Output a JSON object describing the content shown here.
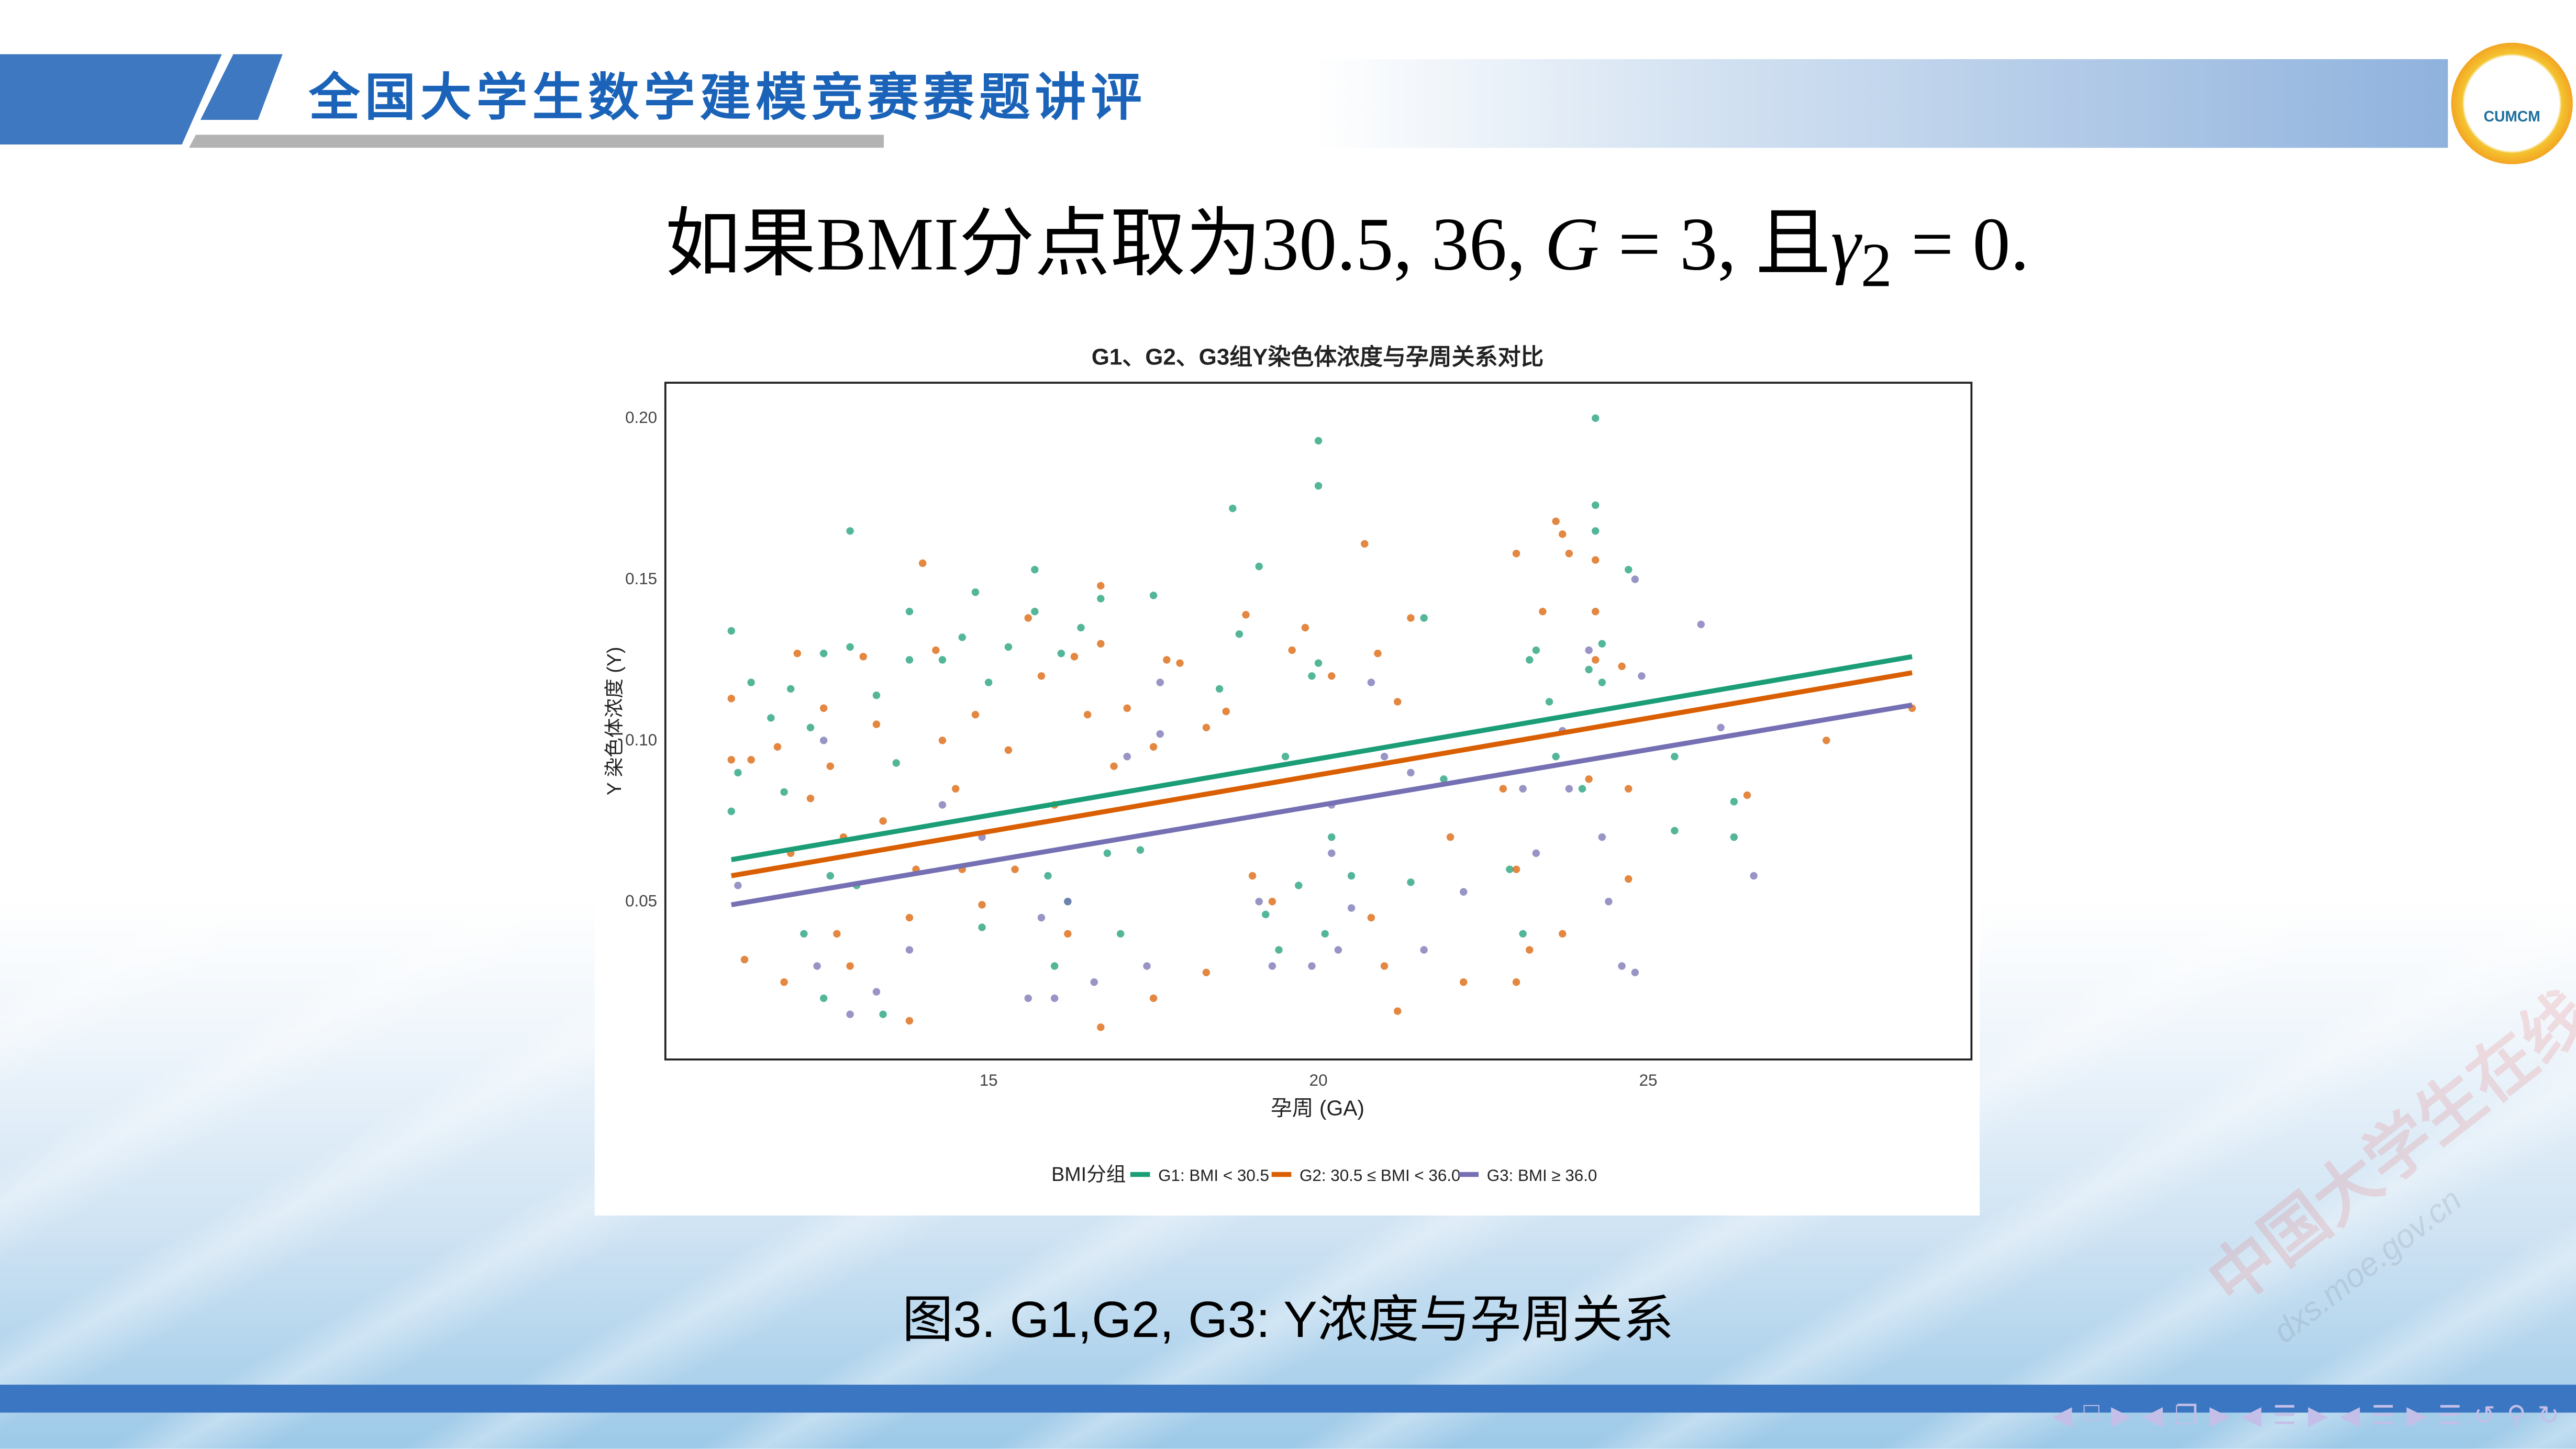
{
  "header": {
    "title": "全国大学生数学建模竞赛赛题讲评",
    "logo_text": "CUMCM"
  },
  "heading": {
    "prefix": "如果BMI分点取为30.5, 36, ",
    "g": "G",
    "g_rest": " = 3, 且",
    "gamma": "γ",
    "sub": "2",
    "end": " = 0."
  },
  "caption": "图3. G1,G2, G3: Y浓度与孕周关系",
  "watermark": {
    "cn": "中国大学生在线",
    "url": "dxs.moe.gov.cn"
  },
  "nav_icons": [
    "arrow-left-icon",
    "frame-icon",
    "arrow-right-icon",
    "arrow-left-icon",
    "subsection-icon",
    "arrow-right-icon",
    "arrow-left-icon",
    "section-icon",
    "arrow-right-icon",
    "arrow-left-icon",
    "outline-icon",
    "arrow-right-icon",
    "toc-icon",
    "back-icon",
    "search-icon",
    "forward-icon"
  ],
  "chart_data": {
    "type": "scatter",
    "title": "G1、G2、G3组Y染色体浓度与孕周关系对比",
    "xlabel": "孕周 (GA)",
    "ylabel": "Y 染色体浓度 (Y)",
    "xlim": [
      10.1,
      29.9
    ],
    "ylim": [
      0.001,
      0.211
    ],
    "xticks": [
      15,
      20,
      25
    ],
    "yticks": [
      0.05,
      0.1,
      0.15,
      0.2
    ],
    "ytick_labels": [
      "0.05",
      "0.10",
      "0.15",
      "0.20"
    ],
    "grid": false,
    "legend": {
      "title": "BMI分组",
      "placement": "bottom"
    },
    "series": [
      {
        "name": "G1: BMI < 30.5",
        "color": "#1b9e77",
        "trend": [
          [
            11.1,
            0.063
          ],
          [
            29,
            0.126
          ]
        ],
        "points": [
          [
            11.1,
            0.134
          ],
          [
            11.1,
            0.078
          ],
          [
            11.2,
            0.09
          ],
          [
            11.4,
            0.118
          ],
          [
            11.7,
            0.107
          ],
          [
            11.9,
            0.084
          ],
          [
            12,
            0.116
          ],
          [
            12.3,
            0.104
          ],
          [
            12.5,
            0.127
          ],
          [
            12.6,
            0.058
          ],
          [
            12.5,
            0.02
          ],
          [
            12.9,
            0.129
          ],
          [
            12.9,
            0.165
          ],
          [
            13.3,
            0.114
          ],
          [
            13.6,
            0.093
          ],
          [
            13.8,
            0.14
          ],
          [
            13.8,
            0.125
          ],
          [
            13.4,
            0.015
          ],
          [
            14.3,
            0.125
          ],
          [
            14.6,
            0.132
          ],
          [
            14.8,
            0.146
          ],
          [
            15,
            0.118
          ],
          [
            15.3,
            0.129
          ],
          [
            15.7,
            0.153
          ],
          [
            15.7,
            0.14
          ],
          [
            16.1,
            0.127
          ],
          [
            16.4,
            0.135
          ],
          [
            16.7,
            0.144
          ],
          [
            17.5,
            0.145
          ],
          [
            16.2,
            0.05
          ],
          [
            16,
            0.03
          ],
          [
            15.9,
            0.058
          ],
          [
            16.8,
            0.065
          ],
          [
            17,
            0.04
          ],
          [
            17.3,
            0.066
          ],
          [
            13,
            0.055
          ],
          [
            12.2,
            0.04
          ],
          [
            14.9,
            0.042
          ],
          [
            18.7,
            0.172
          ],
          [
            19.1,
            0.154
          ],
          [
            18.5,
            0.116
          ],
          [
            18.8,
            0.133
          ],
          [
            20,
            0.193
          ],
          [
            20,
            0.179
          ],
          [
            20,
            0.124
          ],
          [
            19.9,
            0.12
          ],
          [
            19.5,
            0.095
          ],
          [
            19.7,
            0.055
          ],
          [
            20.2,
            0.07
          ],
          [
            20.5,
            0.058
          ],
          [
            19.2,
            0.046
          ],
          [
            19.4,
            0.035
          ],
          [
            20.1,
            0.04
          ],
          [
            21.6,
            0.138
          ],
          [
            21.9,
            0.088
          ],
          [
            23.2,
            0.125
          ],
          [
            23.3,
            0.128
          ],
          [
            23.5,
            0.112
          ],
          [
            24.2,
            0.2
          ],
          [
            24.2,
            0.173
          ],
          [
            24.2,
            0.165
          ],
          [
            24.3,
            0.13
          ],
          [
            24.3,
            0.118
          ],
          [
            24.1,
            0.122
          ],
          [
            24.7,
            0.153
          ],
          [
            24,
            0.085
          ],
          [
            23.6,
            0.095
          ],
          [
            25.4,
            0.095
          ],
          [
            25.4,
            0.072
          ],
          [
            26.3,
            0.081
          ],
          [
            26.3,
            0.07
          ],
          [
            22.9,
            0.06
          ],
          [
            23.1,
            0.04
          ],
          [
            21.4,
            0.056
          ]
        ]
      },
      {
        "name": "G2: 30.5 ≤ BMI < 36.0",
        "color": "#d95f02",
        "trend": [
          [
            11.1,
            0.058
          ],
          [
            29,
            0.121
          ]
        ],
        "points": [
          [
            11.1,
            0.113
          ],
          [
            11.1,
            0.094
          ],
          [
            11.3,
            0.032
          ],
          [
            11.4,
            0.094
          ],
          [
            11.8,
            0.098
          ],
          [
            11.9,
            0.025
          ],
          [
            12,
            0.065
          ],
          [
            12.1,
            0.127
          ],
          [
            12.3,
            0.082
          ],
          [
            12.5,
            0.11
          ],
          [
            12.6,
            0.092
          ],
          [
            12.8,
            0.07
          ],
          [
            12.9,
            0.03
          ],
          [
            13.1,
            0.126
          ],
          [
            13.3,
            0.105
          ],
          [
            13.4,
            0.075
          ],
          [
            13.8,
            0.045
          ],
          [
            13.8,
            0.013
          ],
          [
            14,
            0.155
          ],
          [
            14.2,
            0.128
          ],
          [
            14.3,
            0.1
          ],
          [
            14.5,
            0.085
          ],
          [
            14.6,
            0.06
          ],
          [
            14.8,
            0.108
          ],
          [
            14.9,
            0.049
          ],
          [
            15.3,
            0.097
          ],
          [
            15.6,
            0.138
          ],
          [
            15.8,
            0.12
          ],
          [
            16,
            0.08
          ],
          [
            16.3,
            0.126
          ],
          [
            16.5,
            0.108
          ],
          [
            16.7,
            0.148
          ],
          [
            16.7,
            0.13
          ],
          [
            16.9,
            0.092
          ],
          [
            17.1,
            0.11
          ],
          [
            16.7,
            0.011
          ],
          [
            17.5,
            0.02
          ],
          [
            17.5,
            0.098
          ],
          [
            17.7,
            0.125
          ],
          [
            17.9,
            0.124
          ],
          [
            18.3,
            0.028
          ],
          [
            18.3,
            0.104
          ],
          [
            18.9,
            0.139
          ],
          [
            18.6,
            0.109
          ],
          [
            19,
            0.058
          ],
          [
            19.3,
            0.05
          ],
          [
            19.8,
            0.135
          ],
          [
            19.6,
            0.128
          ],
          [
            20.2,
            0.12
          ],
          [
            20.7,
            0.161
          ],
          [
            20.9,
            0.127
          ],
          [
            21.4,
            0.138
          ],
          [
            21.2,
            0.112
          ],
          [
            20.8,
            0.045
          ],
          [
            21,
            0.03
          ],
          [
            21.2,
            0.016
          ],
          [
            22,
            0.07
          ],
          [
            22.2,
            0.025
          ],
          [
            23,
            0.158
          ],
          [
            23.4,
            0.14
          ],
          [
            23.6,
            0.168
          ],
          [
            23.7,
            0.164
          ],
          [
            23.8,
            0.158
          ],
          [
            24.2,
            0.156
          ],
          [
            24.2,
            0.14
          ],
          [
            24.2,
            0.125
          ],
          [
            24.6,
            0.123
          ],
          [
            24.7,
            0.085
          ],
          [
            24.7,
            0.057
          ],
          [
            23,
            0.06
          ],
          [
            23.2,
            0.035
          ],
          [
            23,
            0.025
          ],
          [
            23.7,
            0.04
          ],
          [
            24.1,
            0.088
          ],
          [
            27.7,
            0.1
          ],
          [
            26.5,
            0.083
          ],
          [
            29,
            0.11
          ],
          [
            22.8,
            0.085
          ],
          [
            12.7,
            0.04
          ],
          [
            15.4,
            0.06
          ],
          [
            13.9,
            0.06
          ],
          [
            16.2,
            0.04
          ]
        ]
      },
      {
        "name": "G3: BMI ≥ 36.0",
        "color": "#7570b3",
        "trend": [
          [
            11.1,
            0.049
          ],
          [
            29,
            0.111
          ]
        ],
        "points": [
          [
            11.2,
            0.055
          ],
          [
            12.5,
            0.1
          ],
          [
            12.4,
            0.03
          ],
          [
            12.9,
            0.015
          ],
          [
            13.3,
            0.022
          ],
          [
            13.8,
            0.035
          ],
          [
            14.3,
            0.08
          ],
          [
            15.6,
            0.02
          ],
          [
            15.8,
            0.045
          ],
          [
            16,
            0.02
          ],
          [
            16.2,
            0.05
          ],
          [
            16.6,
            0.025
          ],
          [
            17.1,
            0.095
          ],
          [
            17.4,
            0.03
          ],
          [
            17.6,
            0.118
          ],
          [
            17.6,
            0.102
          ],
          [
            19.1,
            0.05
          ],
          [
            19.3,
            0.03
          ],
          [
            19.9,
            0.03
          ],
          [
            20.3,
            0.035
          ],
          [
            20.2,
            0.08
          ],
          [
            20.2,
            0.065
          ],
          [
            20.5,
            0.048
          ],
          [
            20.8,
            0.118
          ],
          [
            21,
            0.095
          ],
          [
            21.6,
            0.035
          ],
          [
            22.2,
            0.053
          ],
          [
            23.1,
            0.085
          ],
          [
            23.3,
            0.065
          ],
          [
            23.7,
            0.103
          ],
          [
            23.8,
            0.085
          ],
          [
            24.1,
            0.128
          ],
          [
            24.3,
            0.07
          ],
          [
            24.4,
            0.05
          ],
          [
            24.6,
            0.03
          ],
          [
            24.8,
            0.15
          ],
          [
            24.9,
            0.12
          ],
          [
            24.8,
            0.028
          ],
          [
            25.8,
            0.136
          ],
          [
            26.1,
            0.104
          ],
          [
            26.6,
            0.058
          ],
          [
            21.4,
            0.09
          ],
          [
            14.9,
            0.07
          ]
        ]
      }
    ]
  }
}
